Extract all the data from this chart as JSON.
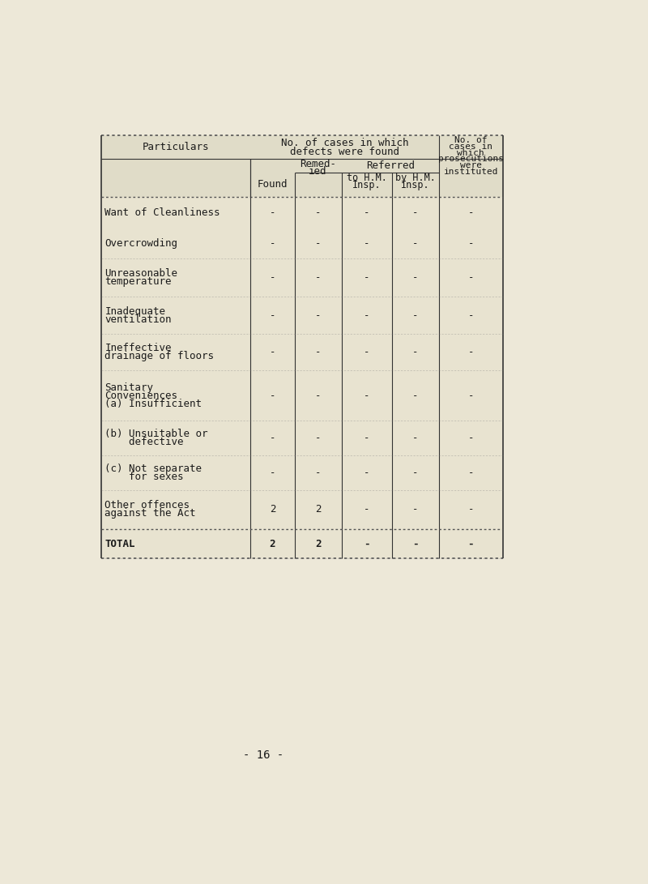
{
  "page_bg": "#ede8d8",
  "table_bg": "#e8e3d0",
  "text_color": "#1a1a1a",
  "col_header_particulars": "Particulars",
  "rows": [
    {
      "label": [
        "Want of Cleanliness"
      ],
      "values": [
        "-",
        "-",
        "-",
        "-",
        "-"
      ]
    },
    {
      "label": [
        "Overcrowding"
      ],
      "values": [
        "-",
        "-",
        "-",
        "-",
        "-"
      ]
    },
    {
      "label": [
        "Unreasonable",
        "temperature"
      ],
      "values": [
        "-",
        "-",
        "-",
        "-",
        "-"
      ]
    },
    {
      "label": [
        "Inadequate",
        "ventilation"
      ],
      "values": [
        "-",
        "-",
        "-",
        "-",
        "-"
      ]
    },
    {
      "label": [
        "Ineffective",
        "drainage of floors"
      ],
      "values": [
        "-",
        "-",
        "-",
        "-",
        "-"
      ]
    },
    {
      "label": [
        "Sanitary",
        "Conveniences",
        "(a) Insufficient"
      ],
      "values": [
        "-",
        "-",
        "-",
        "-",
        "-"
      ]
    },
    {
      "label": [
        "(b) Unsuitable or",
        "    defective"
      ],
      "values": [
        "-",
        "-",
        "-",
        "-",
        "-"
      ]
    },
    {
      "label": [
        "(c) Not separate",
        "    for sexes"
      ],
      "values": [
        "-",
        "-",
        "-",
        "-",
        "-"
      ]
    },
    {
      "label": [
        "Other offences",
        "against the Act"
      ],
      "values": [
        "2",
        "2",
        "-",
        "-",
        "-"
      ]
    },
    {
      "label": [
        "TOTAL"
      ],
      "values": [
        "2",
        "2",
        "-",
        "-",
        "-"
      ],
      "is_total": true
    }
  ],
  "footer_text": "- 16 -"
}
